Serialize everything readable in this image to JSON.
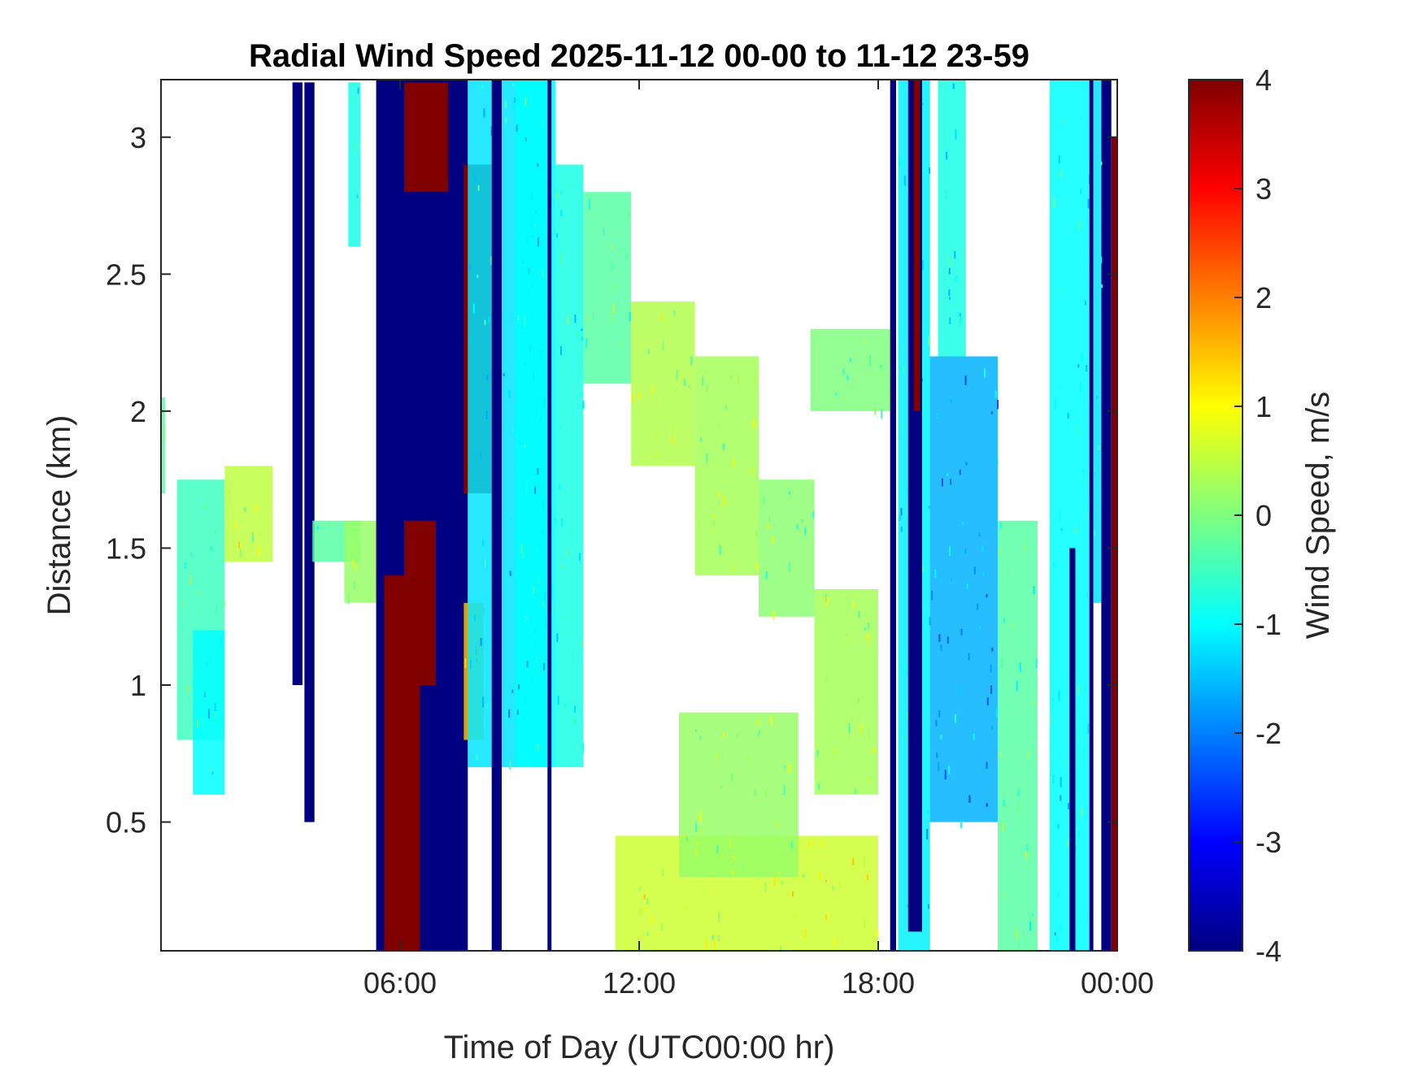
{
  "chart_data": {
    "type": "heatmap",
    "title": "Radial Wind Speed 2025-11-12 00-00 to 11-12 23-59",
    "xlabel": "Time of Day (UTC00:00 hr)",
    "ylabel": "Distance (km)",
    "xlim_hours": [
      0,
      24
    ],
    "ylim_km": [
      0.03,
      3.21
    ],
    "x_ticks": [
      {
        "value": 6,
        "label": "06:00"
      },
      {
        "value": 12,
        "label": "12:00"
      },
      {
        "value": 18,
        "label": "18:00"
      },
      {
        "value": 24,
        "label": "00:00"
      }
    ],
    "y_ticks": [
      {
        "value": 0.5,
        "label": "0.5"
      },
      {
        "value": 1,
        "label": "1"
      },
      {
        "value": 1.5,
        "label": "1.5"
      },
      {
        "value": 2,
        "label": "2"
      },
      {
        "value": 2.5,
        "label": "2.5"
      },
      {
        "value": 3,
        "label": "3"
      }
    ],
    "colorbar": {
      "label": "Wind Speed, m/s",
      "colormap": "jet",
      "min": -4,
      "max": 4,
      "ticks": [
        {
          "value": 4,
          "label": "4"
        },
        {
          "value": 3,
          "label": "3"
        },
        {
          "value": 2,
          "label": "2"
        },
        {
          "value": 1,
          "label": "1"
        },
        {
          "value": 0,
          "label": "0"
        },
        {
          "value": -1,
          "label": "-1"
        },
        {
          "value": -2,
          "label": "-2"
        },
        {
          "value": -3,
          "label": "-3"
        },
        {
          "value": -4,
          "label": "-4"
        }
      ]
    },
    "regions": [
      {
        "t0": 0.0,
        "t1": 0.1,
        "d0": 1.7,
        "d1": 2.05,
        "speed": -0.3
      },
      {
        "t0": 0.4,
        "t1": 1.6,
        "d0": 0.8,
        "d1": 1.75,
        "speed": -0.5
      },
      {
        "t0": 1.6,
        "t1": 2.8,
        "d0": 1.45,
        "d1": 1.8,
        "speed": 0.5
      },
      {
        "t0": 0.8,
        "t1": 1.6,
        "d0": 0.6,
        "d1": 1.2,
        "speed": -1.0
      },
      {
        "t0": 3.3,
        "t1": 3.55,
        "d0": 1.0,
        "d1": 3.2,
        "speed": -4.0
      },
      {
        "t0": 3.6,
        "t1": 3.85,
        "d0": 0.5,
        "d1": 3.2,
        "speed": -4.0
      },
      {
        "t0": 3.8,
        "t1": 5.0,
        "d0": 1.45,
        "d1": 1.6,
        "speed": -0.3
      },
      {
        "t0": 4.6,
        "t1": 5.5,
        "d0": 1.3,
        "d1": 1.6,
        "speed": 0.2
      },
      {
        "t0": 4.7,
        "t1": 5.0,
        "d0": 2.6,
        "d1": 3.2,
        "speed": -0.8
      },
      {
        "t0": 5.4,
        "t1": 7.7,
        "d0": 0.03,
        "d1": 3.21,
        "speed": -4.0
      },
      {
        "t0": 5.6,
        "t1": 6.5,
        "d0": 0.03,
        "d1": 1.4,
        "speed": 4.0
      },
      {
        "t0": 6.1,
        "t1": 6.9,
        "d0": 1.0,
        "d1": 1.6,
        "speed": 4.0
      },
      {
        "t0": 6.1,
        "t1": 7.2,
        "d0": 2.8,
        "d1": 3.2,
        "speed": 4.0
      },
      {
        "t0": 7.6,
        "t1": 8.1,
        "d0": 0.8,
        "d1": 1.3,
        "speed": 1.5
      },
      {
        "t0": 7.6,
        "t1": 8.3,
        "d0": 1.7,
        "d1": 2.9,
        "speed": 4.0
      },
      {
        "t0": 7.7,
        "t1": 9.8,
        "d0": 0.7,
        "d1": 3.21,
        "speed": -1.2
      },
      {
        "t0": 8.3,
        "t1": 8.55,
        "d0": 0.03,
        "d1": 3.21,
        "speed": -4.0
      },
      {
        "t0": 8.9,
        "t1": 9.9,
        "d0": 0.7,
        "d1": 3.21,
        "speed": -1.0
      },
      {
        "t0": 9.7,
        "t1": 9.8,
        "d0": 0.03,
        "d1": 3.21,
        "speed": -4.0
      },
      {
        "t0": 9.9,
        "t1": 10.6,
        "d0": 0.7,
        "d1": 2.9,
        "speed": -0.8
      },
      {
        "t0": 10.6,
        "t1": 11.8,
        "d0": 2.1,
        "d1": 2.8,
        "speed": -0.3
      },
      {
        "t0": 11.8,
        "t1": 13.4,
        "d0": 1.8,
        "d1": 2.4,
        "speed": 0.4
      },
      {
        "t0": 13.4,
        "t1": 15.0,
        "d0": 1.4,
        "d1": 2.2,
        "speed": 0.3
      },
      {
        "t0": 15.0,
        "t1": 16.4,
        "d0": 1.25,
        "d1": 1.75,
        "speed": 0.1
      },
      {
        "t0": 16.4,
        "t1": 18.0,
        "d0": 0.6,
        "d1": 1.35,
        "speed": 0.3
      },
      {
        "t0": 16.3,
        "t1": 18.4,
        "d0": 2.0,
        "d1": 2.3,
        "speed": 0.0
      },
      {
        "t0": 11.4,
        "t1": 18.0,
        "d0": 0.03,
        "d1": 0.45,
        "speed": 0.6
      },
      {
        "t0": 13.0,
        "t1": 16.0,
        "d0": 0.3,
        "d1": 0.9,
        "speed": 0.2
      },
      {
        "t0": 18.3,
        "t1": 18.45,
        "d0": 0.03,
        "d1": 3.21,
        "speed": -4.0
      },
      {
        "t0": 18.5,
        "t1": 19.3,
        "d0": 0.03,
        "d1": 3.21,
        "speed": -1.1
      },
      {
        "t0": 18.75,
        "t1": 19.1,
        "d0": 0.1,
        "d1": 3.21,
        "speed": -4.0
      },
      {
        "t0": 18.9,
        "t1": 19.05,
        "d0": 2.0,
        "d1": 3.21,
        "speed": 4.0
      },
      {
        "t0": 19.3,
        "t1": 21.0,
        "d0": 0.5,
        "d1": 2.2,
        "speed": -1.6
      },
      {
        "t0": 19.5,
        "t1": 20.2,
        "d0": 2.2,
        "d1": 3.21,
        "speed": -0.8
      },
      {
        "t0": 21.0,
        "t1": 22.0,
        "d0": 0.03,
        "d1": 1.6,
        "speed": -0.3
      },
      {
        "t0": 22.3,
        "t1": 23.3,
        "d0": 0.03,
        "d1": 3.21,
        "speed": -1.0
      },
      {
        "t0": 22.8,
        "t1": 22.95,
        "d0": 0.03,
        "d1": 1.5,
        "speed": -4.0
      },
      {
        "t0": 23.3,
        "t1": 23.4,
        "d0": 0.03,
        "d1": 3.21,
        "speed": -4.0
      },
      {
        "t0": 23.6,
        "t1": 23.85,
        "d0": 0.03,
        "d1": 3.21,
        "speed": -4.0
      },
      {
        "t0": 23.85,
        "t1": 24.0,
        "d0": 0.03,
        "d1": 3.0,
        "speed": 4.0
      },
      {
        "t0": 23.4,
        "t1": 23.6,
        "d0": 1.3,
        "d1": 3.21,
        "speed": -1.2
      }
    ]
  }
}
